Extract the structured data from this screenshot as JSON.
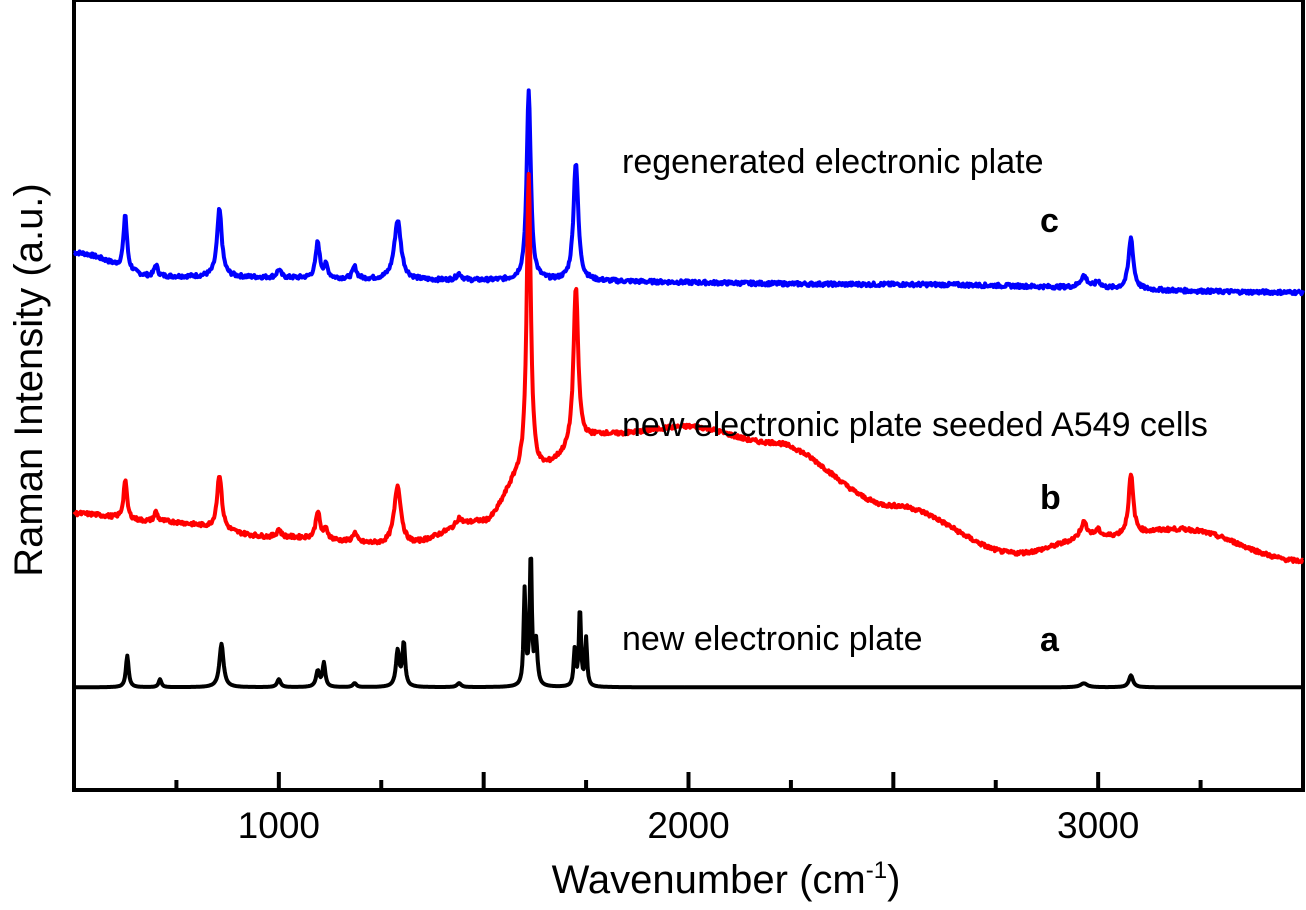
{
  "chart_data": {
    "type": "line",
    "title": "",
    "xlabel": "Wavenumber (cm",
    "xlabel_sup": "-1",
    "xlabel_tail": ")",
    "ylabel": "Raman Intensity (a.u.)",
    "xlim": [
      500,
      3500
    ],
    "ylim": [
      0,
      10
    ],
    "x_ticks": [
      1000,
      2000,
      3000
    ],
    "x_tick_labels": [
      "1000",
      "2000",
      "3000"
    ],
    "x_minor_ticks": [
      750,
      1250,
      1500,
      1750,
      2250,
      2500,
      2750,
      3250
    ],
    "y_ticks_shown": false,
    "grid": false,
    "legend": "none",
    "annotations": [
      {
        "text": "regenerated electronic plate",
        "series": "c"
      },
      {
        "text": "new electronic plate seeded A549 cells",
        "series": "b"
      },
      {
        "text": "new electronic plate",
        "series": "a"
      }
    ],
    "series": [
      {
        "name": "c",
        "label": "regenerated electronic plate",
        "color": "#0000ff",
        "baseline": [
          [
            500,
            6.8
          ],
          [
            700,
            6.5
          ],
          [
            1500,
            6.45
          ],
          [
            2500,
            6.4
          ],
          [
            3500,
            6.3
          ]
        ],
        "peaks": [
          [
            625,
            0.7,
            5
          ],
          [
            700,
            0.15,
            5
          ],
          [
            855,
            0.85,
            7
          ],
          [
            1000,
            0.1,
            6
          ],
          [
            1095,
            0.45,
            6
          ],
          [
            1115,
            0.15,
            6
          ],
          [
            1185,
            0.15,
            6
          ],
          [
            1290,
            0.75,
            10
          ],
          [
            1440,
            0.08,
            8
          ],
          [
            1610,
            2.4,
            6
          ],
          [
            1725,
            1.5,
            7
          ],
          [
            2965,
            0.15,
            10
          ],
          [
            3000,
            0.08,
            8
          ],
          [
            3080,
            0.65,
            7
          ]
        ]
      },
      {
        "name": "b",
        "label": "new electronic plate seeded A549 cells",
        "color": "#ff0000",
        "baseline": [
          [
            500,
            3.5
          ],
          [
            700,
            3.4
          ],
          [
            1000,
            3.2
          ],
          [
            1300,
            3.1
          ],
          [
            1500,
            3.4
          ],
          [
            1600,
            4.0
          ],
          [
            1800,
            4.5
          ],
          [
            2000,
            4.6
          ],
          [
            2200,
            4.4
          ],
          [
            2500,
            3.6
          ],
          [
            2800,
            3.0
          ],
          [
            3000,
            3.2
          ],
          [
            3200,
            3.3
          ],
          [
            3500,
            2.9
          ]
        ],
        "peaks": [
          [
            625,
            0.5,
            5
          ],
          [
            700,
            0.12,
            5
          ],
          [
            855,
            0.7,
            7
          ],
          [
            1000,
            0.1,
            6
          ],
          [
            1095,
            0.35,
            6
          ],
          [
            1115,
            0.12,
            6
          ],
          [
            1185,
            0.12,
            6
          ],
          [
            1290,
            0.75,
            10
          ],
          [
            1440,
            0.1,
            8
          ],
          [
            1610,
            3.8,
            6
          ],
          [
            1725,
            2.0,
            7
          ],
          [
            2965,
            0.2,
            10
          ],
          [
            3000,
            0.08,
            8
          ],
          [
            3080,
            0.75,
            7
          ]
        ]
      },
      {
        "name": "a",
        "label": "new electronic plate",
        "color": "#000000",
        "baseline": [
          [
            500,
            1.3
          ],
          [
            3500,
            1.3
          ]
        ],
        "peaks": [
          [
            630,
            0.4,
            4
          ],
          [
            710,
            0.1,
            4
          ],
          [
            860,
            0.55,
            6
          ],
          [
            1000,
            0.1,
            5
          ],
          [
            1095,
            0.2,
            5
          ],
          [
            1110,
            0.3,
            4
          ],
          [
            1185,
            0.05,
            5
          ],
          [
            1290,
            0.45,
            5
          ],
          [
            1305,
            0.55,
            4
          ],
          [
            1440,
            0.05,
            6
          ],
          [
            1600,
            1.2,
            3
          ],
          [
            1615,
            1.7,
            3
          ],
          [
            1628,
            0.55,
            4
          ],
          [
            1722,
            0.45,
            3
          ],
          [
            1735,
            1.0,
            3
          ],
          [
            1750,
            0.6,
            3
          ],
          [
            2965,
            0.05,
            10
          ],
          [
            3080,
            0.15,
            6
          ]
        ]
      }
    ]
  }
}
